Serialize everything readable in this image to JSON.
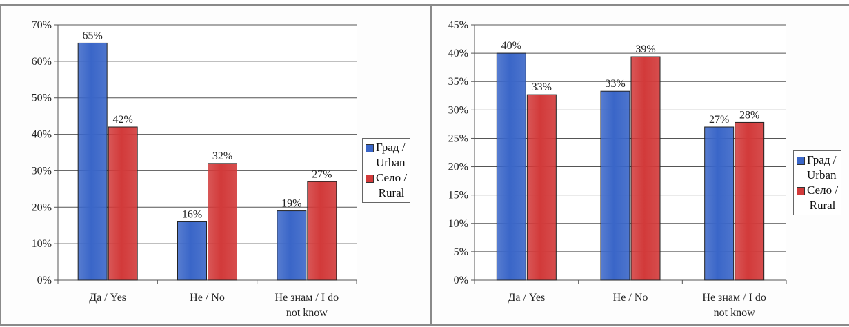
{
  "chart_data": [
    {
      "type": "bar",
      "categories": [
        [
          "Да / Yes"
        ],
        [
          "Не / No"
        ],
        [
          "Не знам / I do",
          "not know"
        ]
      ],
      "series": [
        {
          "name": [
            "Град /",
            "Urban"
          ],
          "values": [
            65,
            16,
            19
          ],
          "labels": [
            "65%",
            "16%",
            "19%"
          ],
          "color": "#3a66c8"
        },
        {
          "name": [
            "Село /",
            "Rural"
          ],
          "values": [
            42,
            32,
            27
          ],
          "labels": [
            "42%",
            "32%",
            "27%"
          ],
          "color": "#d23a3a"
        }
      ],
      "yticks": [
        "0%",
        "10%",
        "20%",
        "30%",
        "40%",
        "50%",
        "60%",
        "70%"
      ],
      "ylim": [
        0,
        70
      ],
      "ystep": 10,
      "grid": true,
      "legend_position": "right"
    },
    {
      "type": "bar",
      "categories": [
        [
          "Да / Yes"
        ],
        [
          "Не / No"
        ],
        [
          "Не знам / I do",
          "not know"
        ]
      ],
      "series": [
        {
          "name": [
            "Град /",
            "Urban"
          ],
          "values": [
            40,
            33.3,
            27
          ],
          "labels": [
            "40%",
            "33%",
            "27%"
          ],
          "color": "#3a66c8"
        },
        {
          "name": [
            "Село /",
            "Rural"
          ],
          "values": [
            32.7,
            39.4,
            27.8
          ],
          "labels": [
            "33%",
            "39%",
            "28%"
          ],
          "color": "#d23a3a"
        }
      ],
      "yticks": [
        "0%",
        "5%",
        "10%",
        "15%",
        "20%",
        "25%",
        "30%",
        "35%",
        "40%",
        "45%"
      ],
      "ylim": [
        0,
        45
      ],
      "ystep": 5,
      "grid": true,
      "legend_position": "right"
    }
  ]
}
